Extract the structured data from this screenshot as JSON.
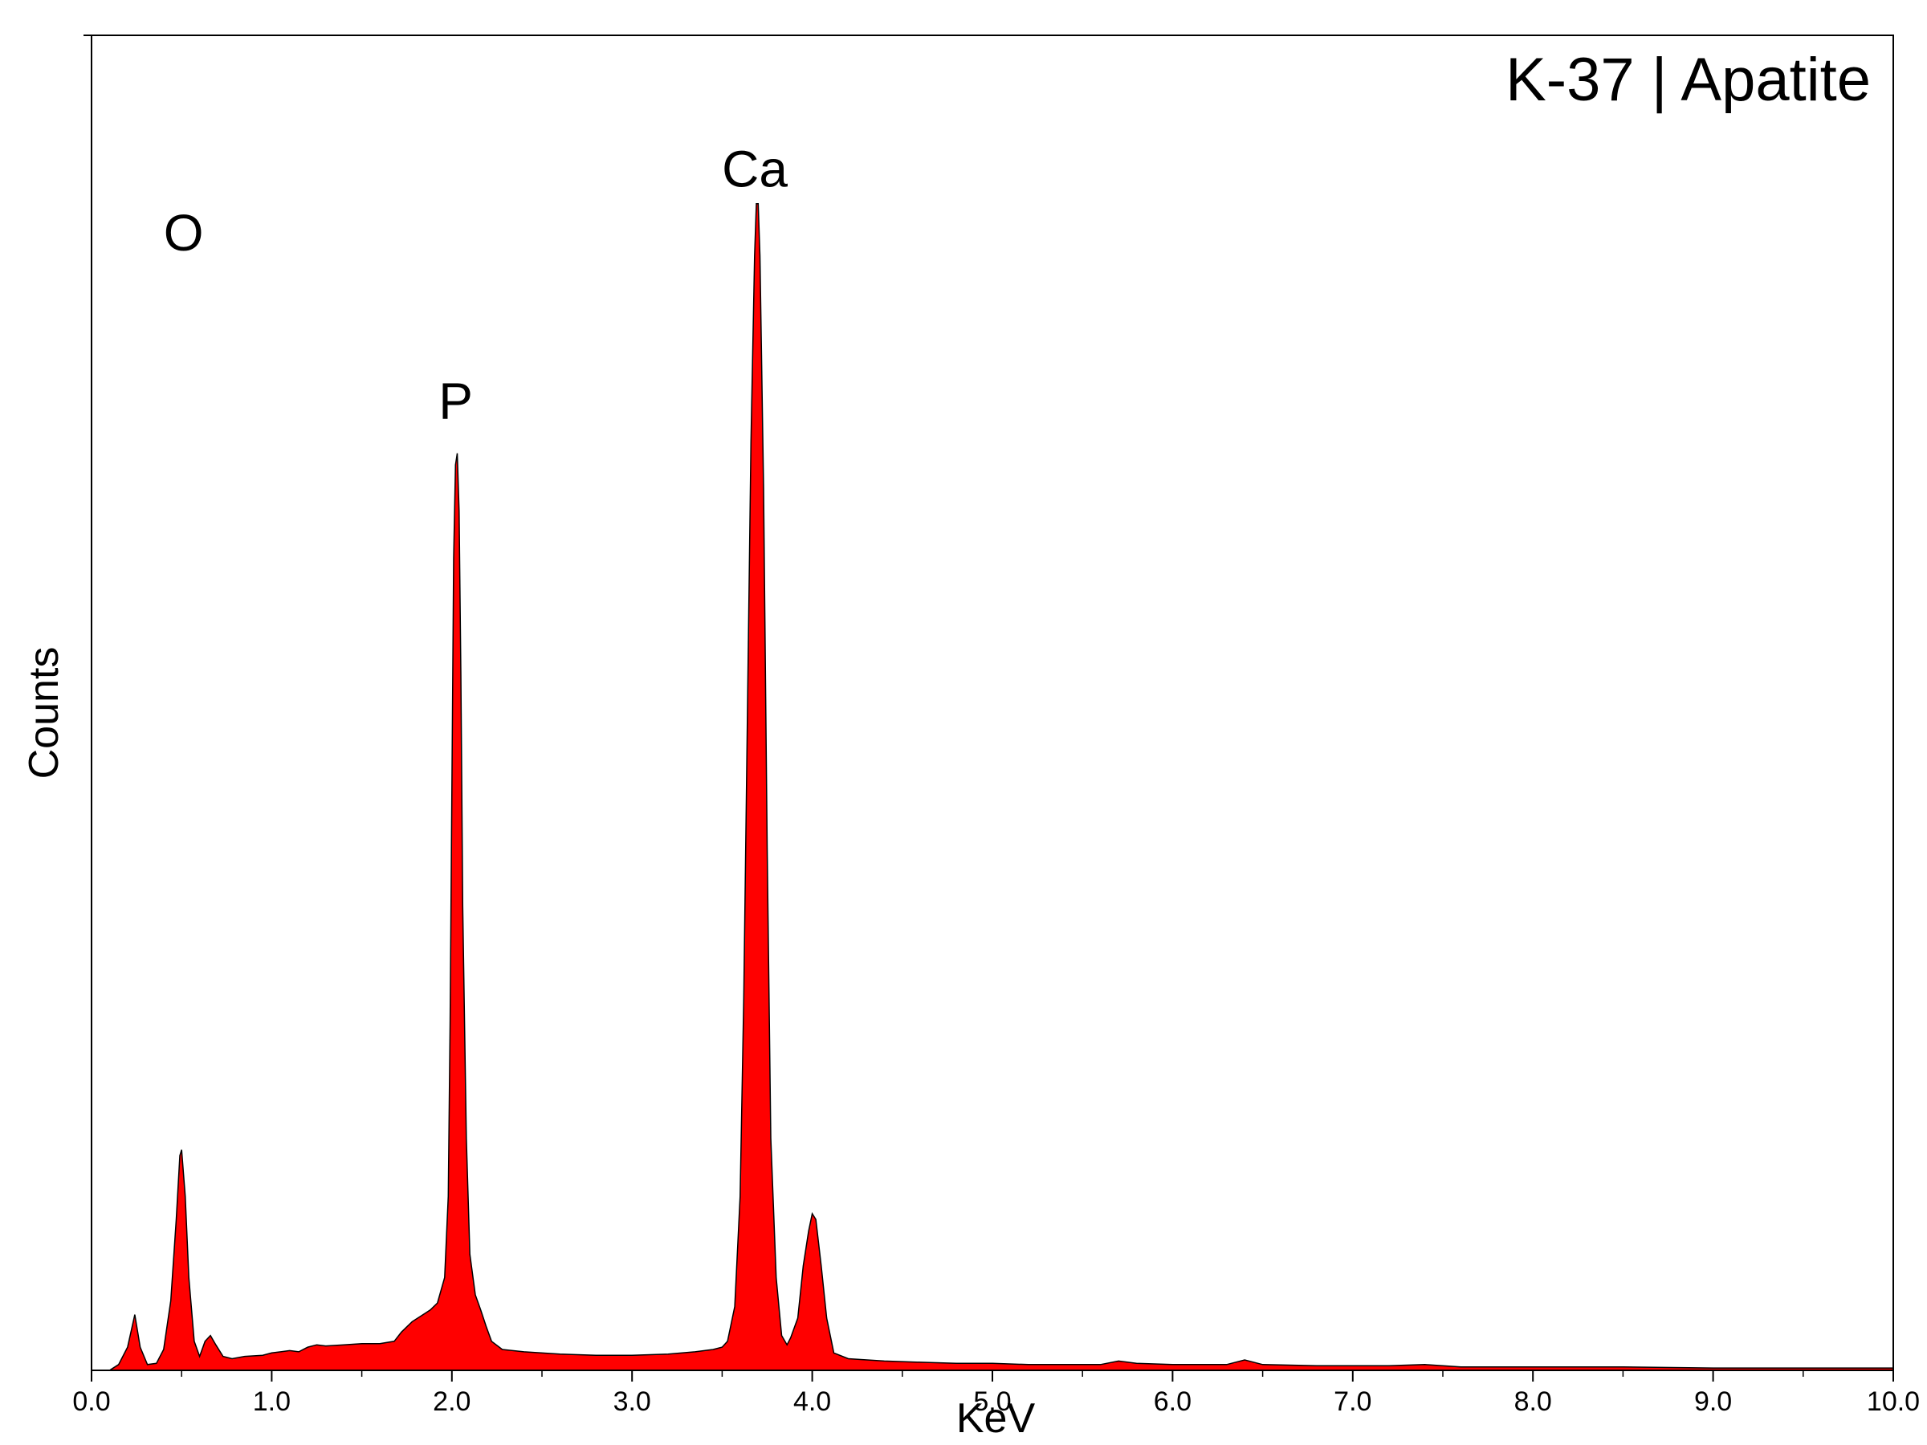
{
  "chart_data": {
    "type": "area",
    "title": "K-37 | Apatite",
    "xlabel": "KeV",
    "ylabel": "Counts",
    "xlim": [
      0.0,
      10.0
    ],
    "ylim": [
      0,
      1150
    ],
    "x_ticks": [
      "0.0",
      "1.0",
      "2.0",
      "3.0",
      "4.0",
      "5.0",
      "6.0",
      "7.0",
      "8.0",
      "9.0",
      "10.0"
    ],
    "y_ticks_labeled": false,
    "grid": false,
    "fill_color": "#ff0000",
    "line_color": "#000000",
    "peak_labels": [
      {
        "text": "O",
        "x": 0.52,
        "y": 955
      },
      {
        "text": "P",
        "x": 2.03,
        "y": 810
      },
      {
        "text": "Ca",
        "x": 3.69,
        "y": 1010
      }
    ],
    "series": [
      {
        "values": [
          [
            0.0,
            0
          ],
          [
            0.1,
            0
          ],
          [
            0.15,
            5
          ],
          [
            0.2,
            20
          ],
          [
            0.24,
            48
          ],
          [
            0.27,
            20
          ],
          [
            0.31,
            5
          ],
          [
            0.36,
            6
          ],
          [
            0.4,
            18
          ],
          [
            0.44,
            60
          ],
          [
            0.47,
            130
          ],
          [
            0.49,
            185
          ],
          [
            0.5,
            190
          ],
          [
            0.52,
            150
          ],
          [
            0.54,
            80
          ],
          [
            0.57,
            25
          ],
          [
            0.6,
            12
          ],
          [
            0.63,
            25
          ],
          [
            0.66,
            30
          ],
          [
            0.69,
            22
          ],
          [
            0.73,
            12
          ],
          [
            0.78,
            10
          ],
          [
            0.85,
            12
          ],
          [
            0.95,
            13
          ],
          [
            1.0,
            15
          ],
          [
            1.05,
            16
          ],
          [
            1.1,
            17
          ],
          [
            1.15,
            16
          ],
          [
            1.2,
            20
          ],
          [
            1.25,
            22
          ],
          [
            1.3,
            21
          ],
          [
            1.4,
            22
          ],
          [
            1.5,
            23
          ],
          [
            1.6,
            23
          ],
          [
            1.68,
            25
          ],
          [
            1.72,
            33
          ],
          [
            1.78,
            42
          ],
          [
            1.84,
            48
          ],
          [
            1.88,
            52
          ],
          [
            1.92,
            58
          ],
          [
            1.96,
            80
          ],
          [
            1.98,
            150
          ],
          [
            1.99,
            300
          ],
          [
            2.0,
            500
          ],
          [
            2.01,
            700
          ],
          [
            2.02,
            780
          ],
          [
            2.03,
            790
          ],
          [
            2.04,
            740
          ],
          [
            2.05,
            600
          ],
          [
            2.06,
            400
          ],
          [
            2.08,
            200
          ],
          [
            2.1,
            100
          ],
          [
            2.13,
            65
          ],
          [
            2.16,
            52
          ],
          [
            2.19,
            38
          ],
          [
            2.22,
            25
          ],
          [
            2.28,
            18
          ],
          [
            2.4,
            16
          ],
          [
            2.6,
            14
          ],
          [
            2.8,
            13
          ],
          [
            3.0,
            13
          ],
          [
            3.2,
            14
          ],
          [
            3.35,
            16
          ],
          [
            3.45,
            18
          ],
          [
            3.5,
            20
          ],
          [
            3.53,
            25
          ],
          [
            3.57,
            55
          ],
          [
            3.6,
            150
          ],
          [
            3.62,
            320
          ],
          [
            3.64,
            560
          ],
          [
            3.66,
            800
          ],
          [
            3.68,
            960
          ],
          [
            3.69,
            1005
          ],
          [
            3.7,
            1005
          ],
          [
            3.71,
            960
          ],
          [
            3.73,
            760
          ],
          [
            3.75,
            450
          ],
          [
            3.77,
            200
          ],
          [
            3.8,
            80
          ],
          [
            3.83,
            30
          ],
          [
            3.86,
            22
          ],
          [
            3.88,
            28
          ],
          [
            3.92,
            45
          ],
          [
            3.95,
            90
          ],
          [
            3.98,
            120
          ],
          [
            4.0,
            135
          ],
          [
            4.02,
            130
          ],
          [
            4.05,
            90
          ],
          [
            4.08,
            45
          ],
          [
            4.12,
            15
          ],
          [
            4.2,
            10
          ],
          [
            4.4,
            8
          ],
          [
            4.6,
            7
          ],
          [
            4.8,
            6
          ],
          [
            5.0,
            6
          ],
          [
            5.2,
            5
          ],
          [
            5.4,
            5
          ],
          [
            5.6,
            5
          ],
          [
            5.7,
            8
          ],
          [
            5.8,
            6
          ],
          [
            6.0,
            5
          ],
          [
            6.3,
            5
          ],
          [
            6.4,
            9
          ],
          [
            6.5,
            5
          ],
          [
            6.8,
            4
          ],
          [
            7.0,
            4
          ],
          [
            7.2,
            4
          ],
          [
            7.4,
            5
          ],
          [
            7.6,
            3
          ],
          [
            8.0,
            3
          ],
          [
            8.5,
            3
          ],
          [
            9.0,
            2
          ],
          [
            9.5,
            2
          ],
          [
            10.0,
            2
          ]
        ]
      }
    ]
  }
}
